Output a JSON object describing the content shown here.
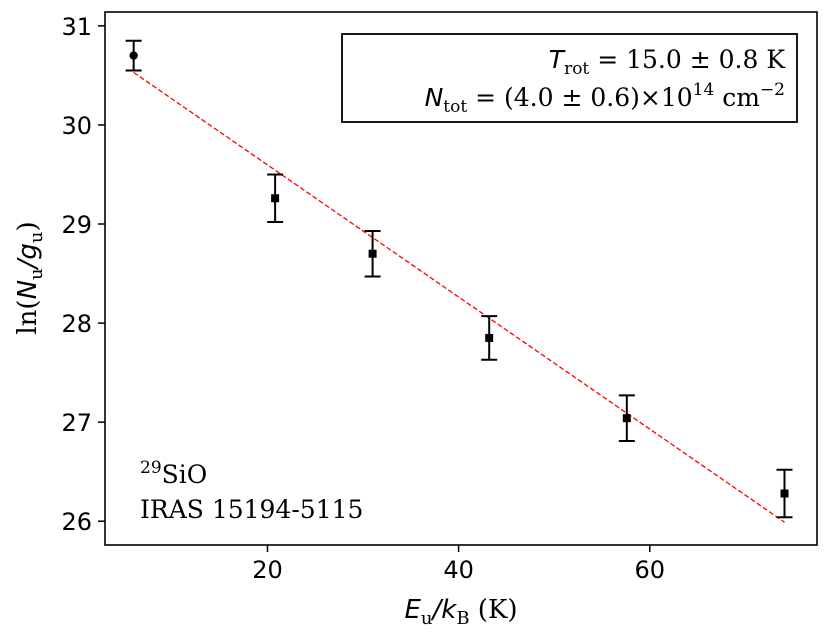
{
  "chart_data": {
    "type": "scatter",
    "xlabel": {
      "main": "E",
      "main_sub": "u",
      "sep": "/",
      "div": "k",
      "div_sub": "B",
      "unit": " (K)"
    },
    "ylabel": {
      "prefix": "ln(",
      "num": "N",
      "num_sub": "u",
      "sep": "/",
      "den": "g",
      "den_sub": "u",
      "suffix": ")"
    },
    "xlim": [
      3.0,
      77.5
    ],
    "ylim": [
      25.76,
      31.14
    ],
    "xticks": [
      20,
      40,
      60
    ],
    "yticks": [
      26,
      27,
      28,
      29,
      30,
      31
    ],
    "grid": false,
    "points": [
      {
        "x": 6.0,
        "y": 30.7,
        "err": 0.15,
        "marker": "circle"
      },
      {
        "x": 20.8,
        "y": 29.26,
        "err": 0.24,
        "marker": "square"
      },
      {
        "x": 31.0,
        "y": 28.7,
        "err": 0.23,
        "marker": "square"
      },
      {
        "x": 43.2,
        "y": 27.85,
        "err": 0.22,
        "marker": "square"
      },
      {
        "x": 57.6,
        "y": 27.04,
        "err": 0.23,
        "marker": "square"
      },
      {
        "x": 74.1,
        "y": 26.28,
        "err": 0.24,
        "marker": "square"
      }
    ],
    "fit": {
      "x": [
        6.0,
        74.1
      ],
      "y": [
        30.53,
        25.99
      ],
      "color": "#ff0000",
      "style": "dashed"
    },
    "annotation_box": {
      "line1": {
        "sym": "T",
        "sub": "rot",
        "text": " = 15.0 ± 0.8 K"
      },
      "line2": {
        "sym": "N",
        "sub": "tot",
        "text": " = (4.0 ± 0.6)×10",
        "sup": "14",
        "unit": " cm",
        "unit_sup": "−2"
      },
      "placement": "top-right"
    },
    "species": {
      "sup": "29",
      "text": "SiO"
    },
    "source": "IRAS 15194-5115",
    "colors": {
      "points": "#000000",
      "fit": "#ff0000"
    }
  }
}
